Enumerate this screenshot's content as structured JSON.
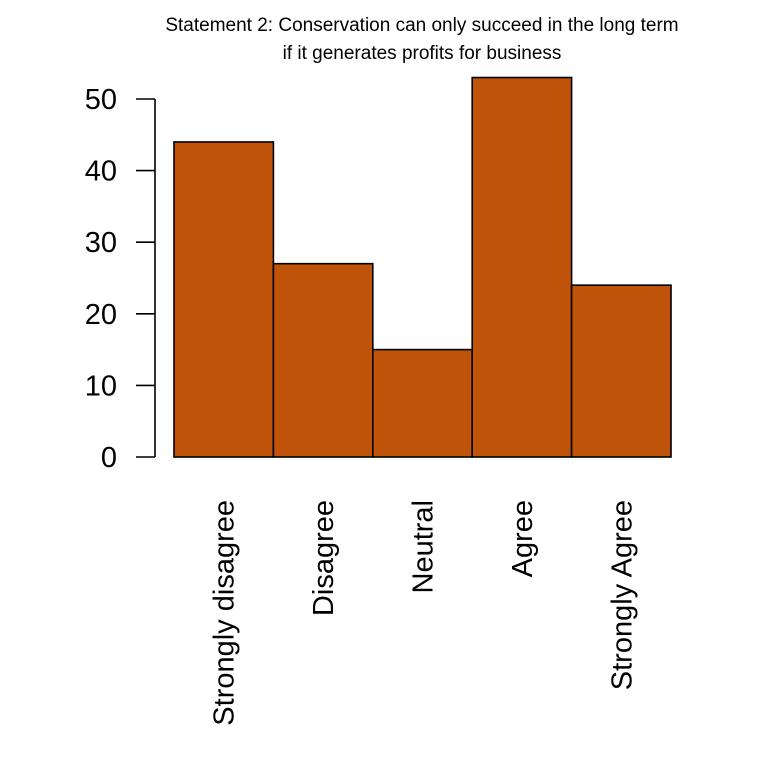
{
  "chart_data": {
    "type": "bar",
    "title_lines": [
      "Statement 2: Conservation can only succeed in the long term",
      "if it generates profits for business"
    ],
    "categories": [
      "Strongly disagree",
      "Disagree",
      "Neutral",
      "Agree",
      "Strongly Agree"
    ],
    "values": [
      44,
      27,
      15,
      53,
      24
    ],
    "yticks": [
      0,
      10,
      20,
      30,
      40,
      50
    ],
    "ylim": [
      0,
      50
    ],
    "bar_color": "#c0530a",
    "grid": false,
    "legend": false
  }
}
